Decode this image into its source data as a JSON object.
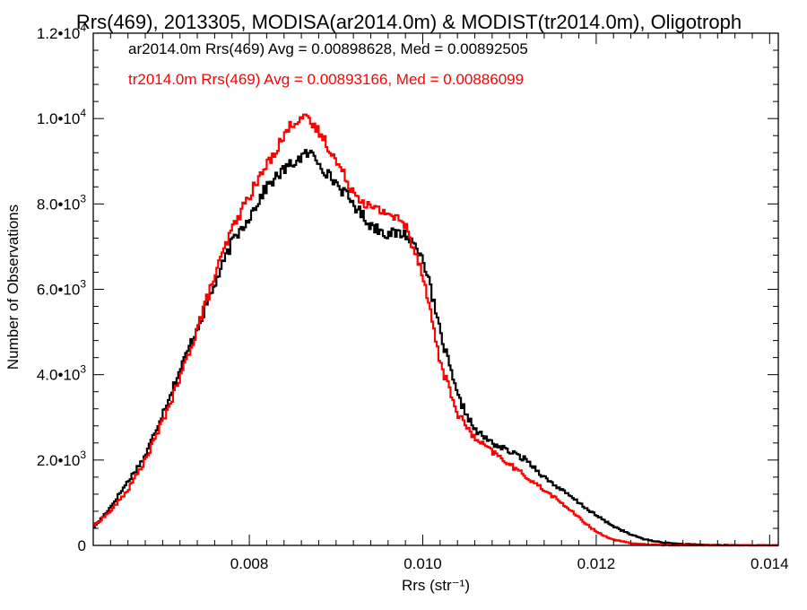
{
  "chart_data": {
    "type": "line",
    "title": "Rrs(469), 2013305, MODISA(ar2014.0m) & MODIST(tr2014.0m), Oligotroph",
    "xlabel": "Rrs (str⁻¹)",
    "ylabel": "Number of Observations",
    "xlim": [
      0.0062,
      0.0141
    ],
    "ylim": [
      0,
      12000
    ],
    "xticks": [
      {
        "value": 0.008,
        "label": "0.008"
      },
      {
        "value": 0.01,
        "label": "0.010"
      },
      {
        "value": 0.012,
        "label": "0.012"
      },
      {
        "value": 0.014,
        "label": "0.014"
      }
    ],
    "yticks": [
      {
        "value": 0,
        "label": "0",
        "exp": ""
      },
      {
        "value": 2000,
        "label": "2.0•1",
        "exp": ""
      },
      {
        "value": 4000,
        "label": "4.0•1",
        "exp": ""
      },
      {
        "value": 6000,
        "label": "6.0•1",
        "exp": ""
      },
      {
        "value": 8000,
        "label": "8.0•1",
        "exp": ""
      },
      {
        "value": 10000,
        "label": "1.0•1",
        "exp": ""
      },
      {
        "value": 12000,
        "label": "1.2•1",
        "exp": ""
      }
    ],
    "ytick_suffix": "0",
    "ytick_exponents": [
      "",
      "3",
      "3",
      "3",
      "3",
      "4",
      "4"
    ],
    "grid": false,
    "annotations": [
      {
        "text": "ar2014.0m Rrs(469) Avg = 0.00898628, Med = 0.00892505",
        "color": "#000000"
      },
      {
        "text": "tr2014.0m Rrs(469) Avg = 0.00893166, Med = 0.00886099",
        "color": "#ff0000"
      }
    ],
    "series": [
      {
        "color": "#000000",
        "step": true,
        "x": [
          0.0062,
          0.0064,
          0.0066,
          0.0068,
          0.007,
          0.0072,
          0.0074,
          0.0076,
          0.0078,
          0.008,
          0.0082,
          0.0084,
          0.0086,
          0.0087,
          0.0088,
          0.0089,
          0.009,
          0.0092,
          0.0094,
          0.0096,
          0.0098,
          0.01,
          0.0102,
          0.0104,
          0.0106,
          0.0108,
          0.011,
          0.0112,
          0.0114,
          0.0116,
          0.0118,
          0.012,
          0.0122,
          0.0124,
          0.0126,
          0.0128,
          0.013,
          0.0132,
          0.0134,
          0.0136,
          0.0141
        ],
        "y": [
          400,
          900,
          1500,
          2100,
          3100,
          4100,
          5100,
          6100,
          7100,
          7700,
          8400,
          8800,
          9100,
          9200,
          9000,
          8700,
          8500,
          8000,
          7500,
          7300,
          7300,
          6800,
          5000,
          3500,
          2700,
          2400,
          2200,
          2000,
          1600,
          1300,
          1000,
          700,
          450,
          250,
          120,
          60,
          30,
          15,
          8,
          3,
          0
        ]
      },
      {
        "color": "#ff0000",
        "step": true,
        "x": [
          0.0062,
          0.0064,
          0.0066,
          0.0068,
          0.007,
          0.0072,
          0.0074,
          0.0076,
          0.0078,
          0.008,
          0.0082,
          0.0084,
          0.0085,
          0.0086,
          0.0087,
          0.0088,
          0.0089,
          0.009,
          0.0092,
          0.0094,
          0.0096,
          0.0098,
          0.01,
          0.0102,
          0.0104,
          0.0106,
          0.0108,
          0.011,
          0.0112,
          0.0114,
          0.0116,
          0.0118,
          0.012,
          0.0122,
          0.0124,
          0.0126,
          0.0128,
          0.013,
          0.0132,
          0.0134,
          0.0141
        ],
        "y": [
          450,
          800,
          1300,
          2000,
          2900,
          3900,
          5100,
          6300,
          7400,
          8200,
          8900,
          9600,
          9900,
          10050,
          9900,
          9700,
          9400,
          9000,
          8300,
          7900,
          7800,
          7500,
          6400,
          4300,
          3100,
          2500,
          2200,
          1900,
          1600,
          1300,
          1000,
          650,
          320,
          130,
          50,
          20,
          8,
          4,
          2,
          1,
          0
        ]
      }
    ]
  }
}
